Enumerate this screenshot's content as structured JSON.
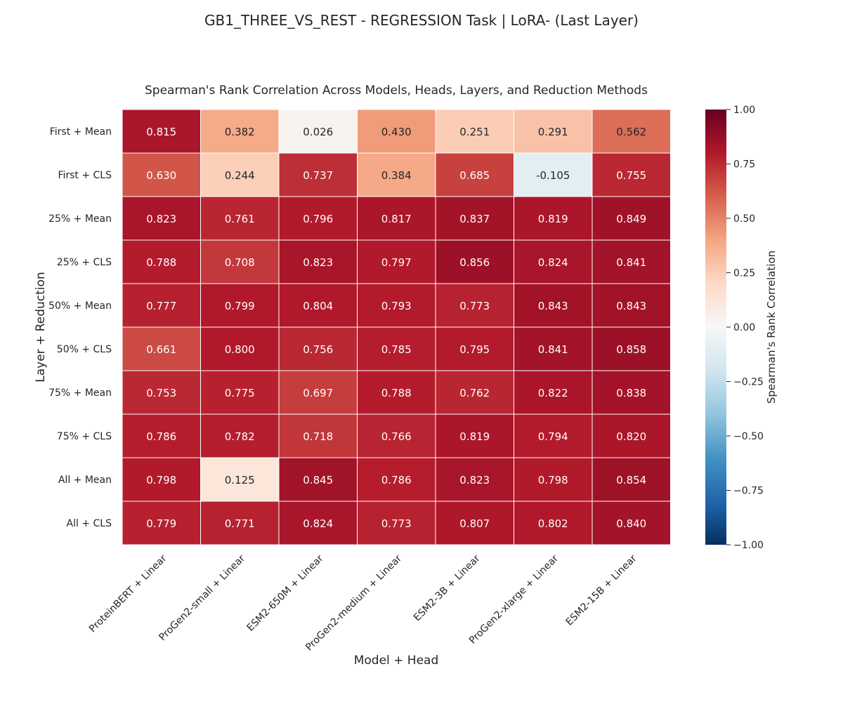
{
  "suptitle": "GB1_THREE_VS_REST - REGRESSION Task | LoRA- (Last Layer)",
  "chart_data": {
    "type": "heatmap",
    "title": "Spearman's Rank Correlation Across Models, Heads, Layers, and Reduction Methods",
    "xlabel": "Model + Head",
    "ylabel": "Layer + Reduction",
    "columns": [
      "ProteinBERT + Linear",
      "ProGen2-small + Linear",
      "ESM2-650M + Linear",
      "ProGen2-medium + Linear",
      "ESM2-3B + Linear",
      "ProGen2-xlarge + Linear",
      "ESM2-15B + Linear"
    ],
    "rows": [
      "First + Mean",
      "First + CLS",
      "25% + Mean",
      "25% + CLS",
      "50% + Mean",
      "50% + CLS",
      "75% + Mean",
      "75% + CLS",
      "All + Mean",
      "All + CLS"
    ],
    "values": [
      [
        0.815,
        0.382,
        0.026,
        0.43,
        0.251,
        0.291,
        0.562
      ],
      [
        0.63,
        0.244,
        0.737,
        0.384,
        0.685,
        -0.105,
        0.755
      ],
      [
        0.823,
        0.761,
        0.796,
        0.817,
        0.837,
        0.819,
        0.849
      ],
      [
        0.788,
        0.708,
        0.823,
        0.797,
        0.856,
        0.824,
        0.841
      ],
      [
        0.777,
        0.799,
        0.804,
        0.793,
        0.773,
        0.843,
        0.843
      ],
      [
        0.661,
        0.8,
        0.756,
        0.785,
        0.795,
        0.841,
        0.858
      ],
      [
        0.753,
        0.775,
        0.697,
        0.788,
        0.762,
        0.822,
        0.838
      ],
      [
        0.786,
        0.782,
        0.718,
        0.766,
        0.819,
        0.794,
        0.82
      ],
      [
        0.798,
        0.125,
        0.845,
        0.786,
        0.823,
        0.798,
        0.854
      ],
      [
        0.779,
        0.771,
        0.824,
        0.773,
        0.807,
        0.802,
        0.84
      ]
    ],
    "value_labels": [
      [
        "0.815",
        "0.382",
        "0.026",
        "0.430",
        "0.251",
        "0.291",
        "0.562"
      ],
      [
        "0.630",
        "0.244",
        "0.737",
        "0.384",
        "0.685",
        "-0.105",
        "0.755"
      ],
      [
        "0.823",
        "0.761",
        "0.796",
        "0.817",
        "0.837",
        "0.819",
        "0.849"
      ],
      [
        "0.788",
        "0.708",
        "0.823",
        "0.797",
        "0.856",
        "0.824",
        "0.841"
      ],
      [
        "0.777",
        "0.799",
        "0.804",
        "0.793",
        "0.773",
        "0.843",
        "0.843"
      ],
      [
        "0.661",
        "0.800",
        "0.756",
        "0.785",
        "0.795",
        "0.841",
        "0.858"
      ],
      [
        "0.753",
        "0.775",
        "0.697",
        "0.788",
        "0.762",
        "0.822",
        "0.838"
      ],
      [
        "0.786",
        "0.782",
        "0.718",
        "0.766",
        "0.819",
        "0.794",
        "0.820"
      ],
      [
        "0.798",
        "0.125",
        "0.845",
        "0.786",
        "0.823",
        "0.798",
        "0.854"
      ],
      [
        "0.779",
        "0.771",
        "0.824",
        "0.773",
        "0.807",
        "0.802",
        "0.840"
      ]
    ],
    "colorbar": {
      "label": "Spearman's Rank Correlation",
      "range": [
        -1.0,
        1.0
      ],
      "colormap": "RdBu_r",
      "ticks": [
        1.0,
        0.75,
        0.5,
        0.25,
        0.0,
        -0.25,
        -0.5,
        -0.75,
        -1.0
      ],
      "tick_labels": [
        "1.00",
        "0.75",
        "0.50",
        "0.25",
        "0.00",
        "−0.25",
        "−0.50",
        "−0.75",
        "−1.00"
      ]
    },
    "colors": {
      "stops": [
        "#053061",
        "#2166ac",
        "#4393c3",
        "#92c5de",
        "#d1e5f0",
        "#f7f7f7",
        "#fddbc7",
        "#f4a582",
        "#d6604d",
        "#b2182b",
        "#67001f"
      ]
    }
  }
}
